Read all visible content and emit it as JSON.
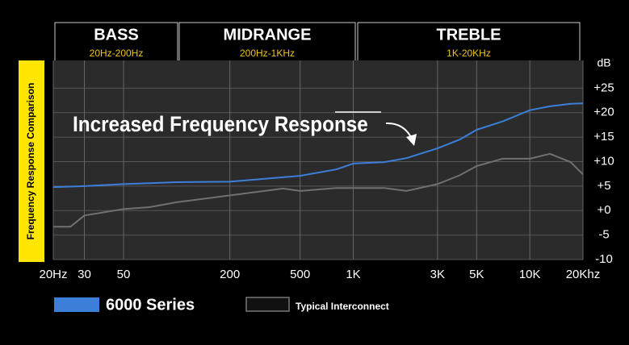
{
  "chart_data": {
    "type": "line",
    "title": "Increased Frequency Response",
    "y_axis_title": "Frequency Response Comparison",
    "y_unit": "dB",
    "sections": [
      {
        "name": "BASS",
        "range": "20Hz-200Hz"
      },
      {
        "name": "MIDRANGE",
        "range": "200Hz-1KHz"
      },
      {
        "name": "TREBLE",
        "range": "1K-20KHz"
      }
    ],
    "x": [
      20,
      25,
      30,
      50,
      70,
      100,
      200,
      400,
      500,
      800,
      1000,
      1500,
      2000,
      3000,
      4000,
      5000,
      7000,
      10000,
      13000,
      17000,
      20000
    ],
    "log_x": true,
    "xlim": [
      20,
      20000
    ],
    "xticks": [
      {
        "value": 20,
        "label": "20Hz"
      },
      30,
      50,
      200,
      500,
      {
        "value": 1000,
        "label": "1K"
      },
      {
        "value": 3000,
        "label": "3K"
      },
      {
        "value": 5000,
        "label": "5K"
      },
      {
        "value": 10000,
        "label": "10K"
      },
      {
        "value": 20000,
        "label": "20Khz"
      }
    ],
    "ylim": [
      -10,
      30
    ],
    "yticks": [
      {
        "value": 25,
        "label": "+25"
      },
      {
        "value": 20,
        "label": "+20"
      },
      {
        "value": 15,
        "label": "+15"
      },
      {
        "value": 10,
        "label": "+10"
      },
      {
        "value": 5,
        "label": "+5"
      },
      {
        "value": 0,
        "label": "+0"
      },
      -5,
      -10
    ],
    "grid": true,
    "series": [
      {
        "name": "6000 Series",
        "color": "#3b7fd9",
        "values": [
          4.8,
          4.9,
          5.0,
          5.4,
          5.6,
          5.8,
          5.9,
          6.8,
          7.1,
          8.4,
          9.6,
          9.9,
          10.7,
          12.7,
          14.5,
          16.5,
          18.2,
          20.5,
          21.3,
          21.8,
          21.9
        ]
      },
      {
        "name": "Typical Interconnect",
        "color": "#707070",
        "values": [
          -3.3,
          -3.3,
          -1,
          0.3,
          0.7,
          1.7,
          3.1,
          4.5,
          4,
          4.6,
          4.6,
          4.6,
          4,
          5.4,
          7.2,
          9.1,
          10.6,
          10.6,
          11.6,
          9.9,
          7.4
        ]
      }
    ]
  }
}
